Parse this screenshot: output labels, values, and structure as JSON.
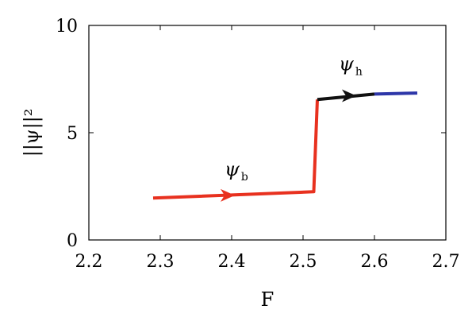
{
  "chart_data": {
    "type": "line",
    "xlabel": "F",
    "ylabel": "||ψ||²",
    "xlim": [
      2.2,
      2.7
    ],
    "ylim": [
      0,
      10
    ],
    "x_ticks": [
      "2.2",
      "2.3",
      "2.4",
      "2.5",
      "2.6",
      "2.7"
    ],
    "y_ticks": [
      "0",
      "5",
      "10"
    ],
    "grid": false,
    "series": [
      {
        "color": "#e8311f",
        "x": [
          2.29,
          2.515,
          2.52
        ],
        "y": [
          1.95,
          2.25,
          6.55
        ]
      },
      {
        "color": "#111111",
        "x": [
          2.52,
          2.6
        ],
        "y": [
          6.55,
          6.8
        ]
      },
      {
        "color": "#2d36a8",
        "x": [
          2.6,
          2.66
        ],
        "y": [
          6.8,
          6.85
        ]
      }
    ],
    "arrows": [
      {
        "x": 2.4,
        "y": 2.08,
        "color": "#e8311f"
      },
      {
        "x": 2.57,
        "y": 6.72,
        "color": "#111111"
      }
    ],
    "annotations": [
      {
        "text": "ψ",
        "sub": "b",
        "x": 2.39,
        "y": 3.0
      },
      {
        "text": "ψ",
        "sub": "h",
        "x": 2.55,
        "y": 7.9
      }
    ]
  }
}
